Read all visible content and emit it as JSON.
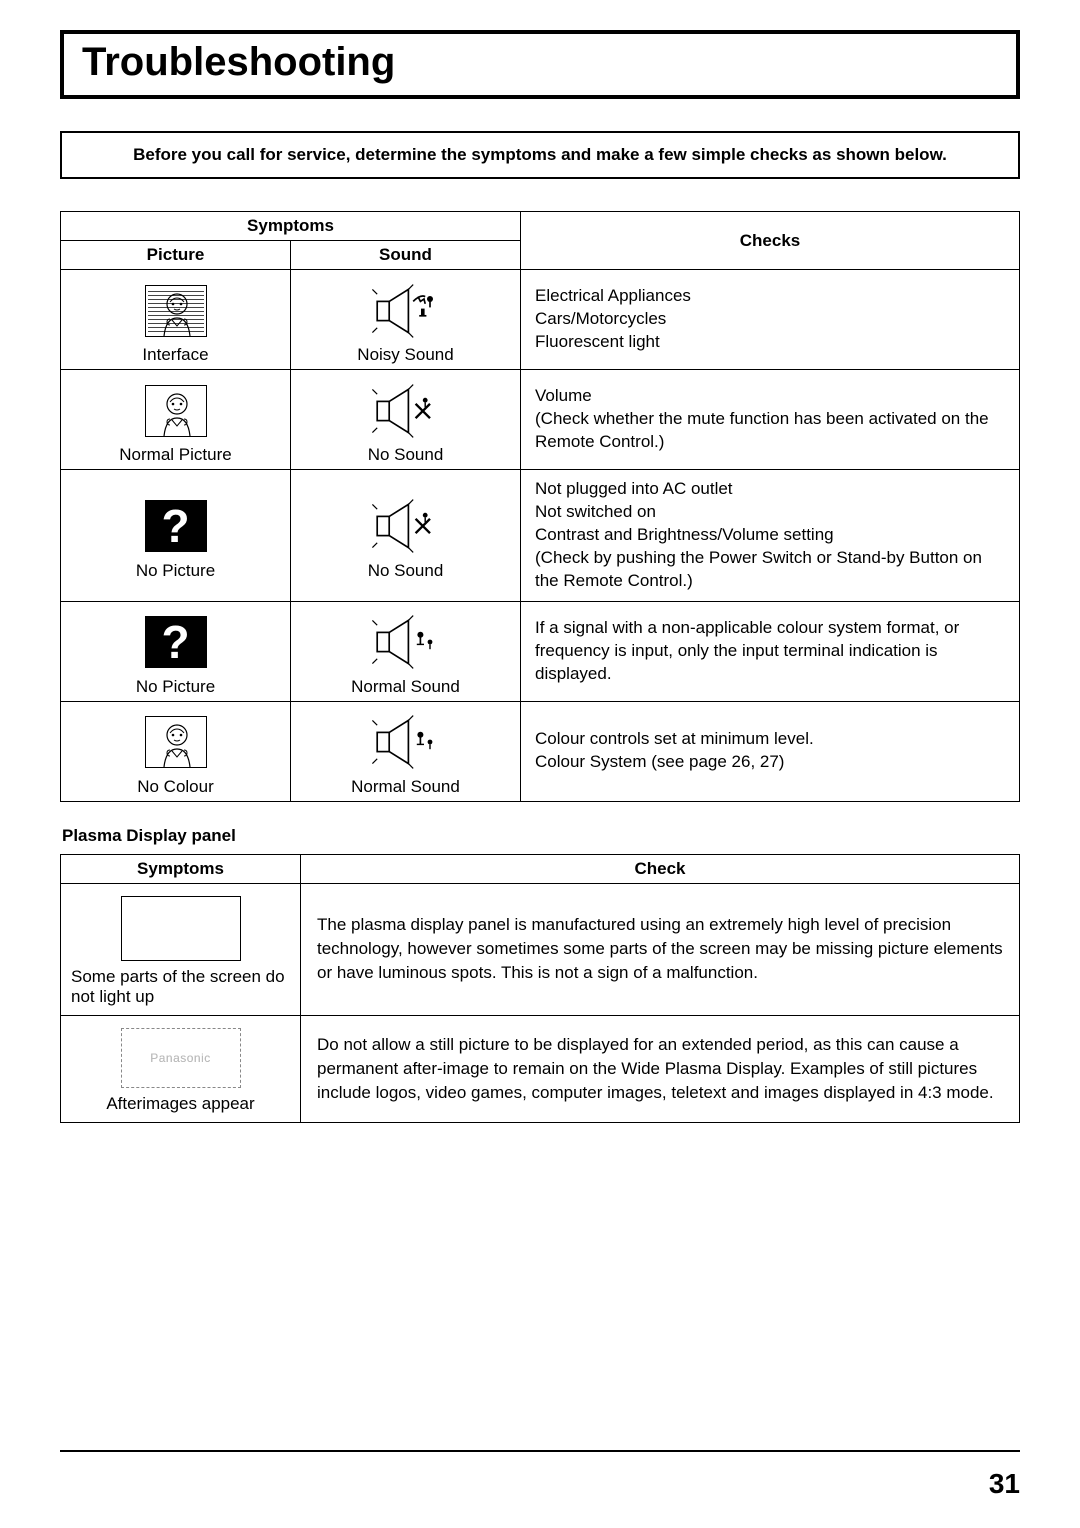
{
  "title": "Troubleshooting",
  "intro": "Before you call for service, determine the symptoms and make a few simple checks as shown below.",
  "headers": {
    "symptoms": "Symptoms",
    "picture": "Picture",
    "sound": "Sound",
    "checks": "Checks",
    "check": "Check"
  },
  "rows": [
    {
      "picture_label": "Interface",
      "sound_label": "Noisy Sound",
      "checks": "Electrical Appliances\nCars/Motorcycles\nFluorescent light",
      "picture_icon": "person-interference",
      "sound_icon": "speaker-noisy"
    },
    {
      "picture_label": "Normal Picture",
      "sound_label": "No Sound",
      "checks": "Volume\n(Check whether the mute function has been activated on the Remote Control.)",
      "picture_icon": "person-normal",
      "sound_icon": "speaker-mute"
    },
    {
      "picture_label": "No Picture",
      "sound_label": "No Sound",
      "checks": "Not plugged into AC outlet\nNot switched on\nContrast and Brightness/Volume setting\n(Check by pushing the Power Switch or Stand-by Button on the Remote Control.)",
      "picture_icon": "question",
      "sound_icon": "speaker-mute"
    },
    {
      "picture_label": "No Picture",
      "sound_label": "Normal Sound",
      "checks": "If a signal with a non-applicable colour system format, or frequency is input, only the input terminal indication is displayed.",
      "picture_icon": "question",
      "sound_icon": "speaker-normal"
    },
    {
      "picture_label": "No Colour",
      "sound_label": "Normal Sound",
      "checks": "Colour controls set at minimum level.\nColour System (see page 26, 27)",
      "picture_icon": "person-normal",
      "sound_icon": "speaker-normal"
    }
  ],
  "subheading": "Plasma Display panel",
  "rows2": [
    {
      "label": "Some parts of the screen do not light up",
      "check": "The plasma display panel is manufactured using an extremely high level of precision technology, however sometimes some parts of the screen may be missing picture elements or have luminous spots. This is not a sign of a malfunction.",
      "icon": "blank"
    },
    {
      "label": "Afterimages appear",
      "check": "Do not allow a still picture to be displayed for an extended period, as this can cause a permanent after-image to remain on the Wide Plasma Display. Examples of still pictures include logos, video games, computer images, teletext and images displayed in 4:3 mode.",
      "icon": "pana"
    }
  ],
  "pana_text": "Panasonic",
  "page_number": "31"
}
